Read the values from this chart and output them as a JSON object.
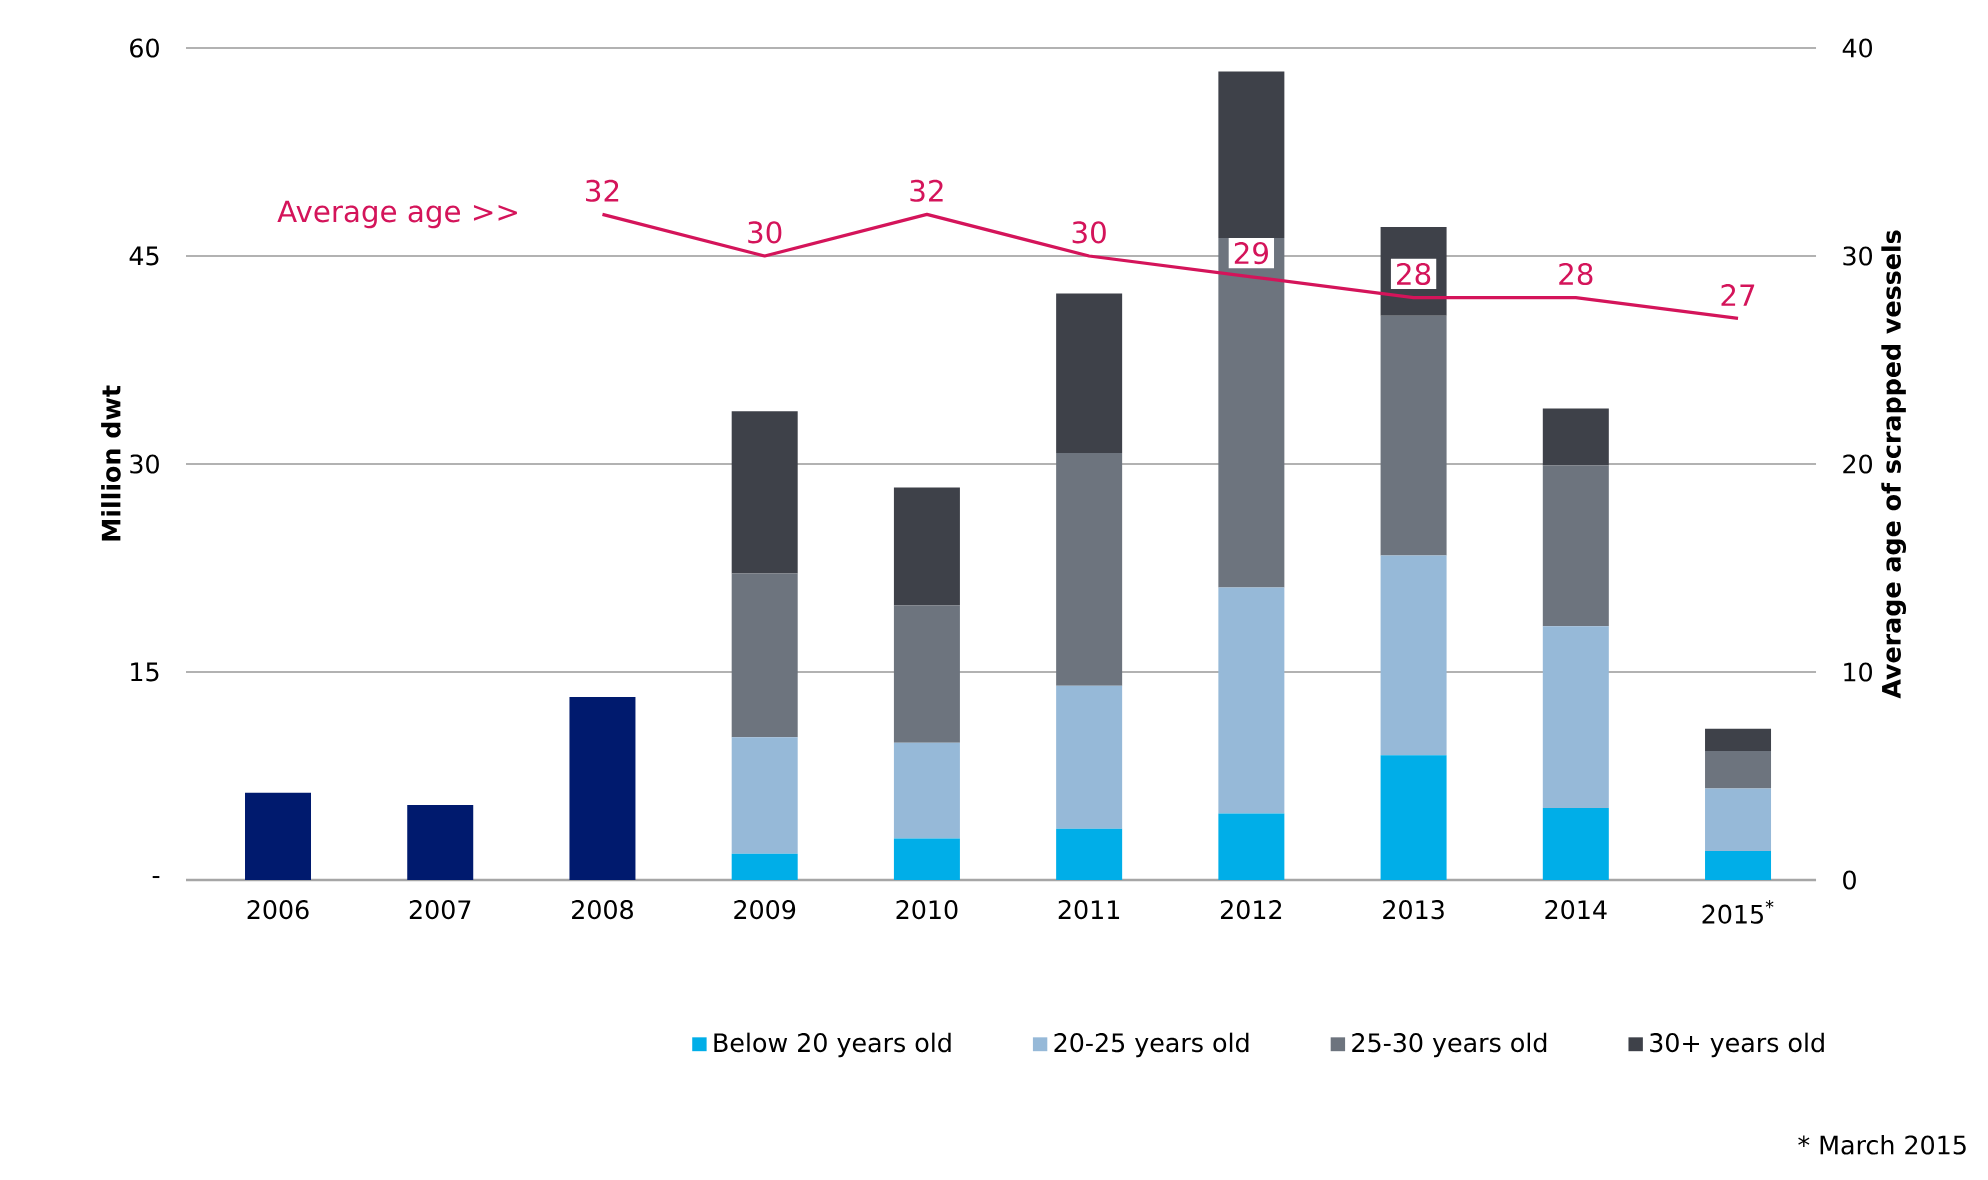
{
  "chart_data": {
    "type": "bar",
    "stacked": true,
    "categories": [
      "2006",
      "2007",
      "2008",
      "2009",
      "2010",
      "2011",
      "2012",
      "2013",
      "2014",
      "2015$^{*}$"
    ],
    "ylabel": "Million dwt",
    "y2label": "Average age of scrapped vessels",
    "ylim": [
      0,
      60
    ],
    "yticks": [
      {
        "value": 0,
        "label": "-"
      },
      15,
      30,
      45,
      60
    ],
    "y2lim": [
      0,
      40
    ],
    "y2ticks": [
      0,
      10,
      20,
      30,
      40
    ],
    "grid": "y",
    "legend": "bottom",
    "series": [
      {
        "color": "#001a6e",
        "values": [
          6.3,
          5.4,
          13.2,
          null,
          null,
          null,
          null,
          null,
          null,
          null
        ]
      },
      {
        "name": "Below 20 years old",
        "color": "#00aee8",
        "values": [
          null,
          null,
          null,
          1.9,
          3.0,
          3.7,
          4.8,
          9.0,
          5.2,
          2.1
        ]
      },
      {
        "name": "20-25 years old",
        "color": "#96b9d8",
        "values": [
          null,
          null,
          null,
          8.4,
          6.9,
          10.3,
          16.3,
          14.4,
          13.1,
          4.5
        ]
      },
      {
        "name": "25-30 years old",
        "color": "#6d747e",
        "values": [
          null,
          null,
          null,
          11.8,
          9.9,
          16.8,
          25.2,
          17.3,
          11.6,
          2.7
        ]
      },
      {
        "name": "30+ years old",
        "color": "#3e4149",
        "values": [
          null,
          null,
          null,
          11.7,
          8.5,
          11.5,
          12.0,
          6.4,
          4.1,
          1.6
        ]
      },
      {
        "name": "Average age >>",
        "type": "line",
        "axis": "y2",
        "color": "#d4145a",
        "values": [
          null,
          null,
          32,
          30,
          32,
          30,
          29,
          28,
          28,
          27
        ],
        "value_labels": [
          null,
          null,
          "32",
          "30",
          "32",
          "30",
          "29",
          "28",
          "28",
          "27"
        ]
      }
    ],
    "annotations": [
      "* March 2015"
    ]
  }
}
